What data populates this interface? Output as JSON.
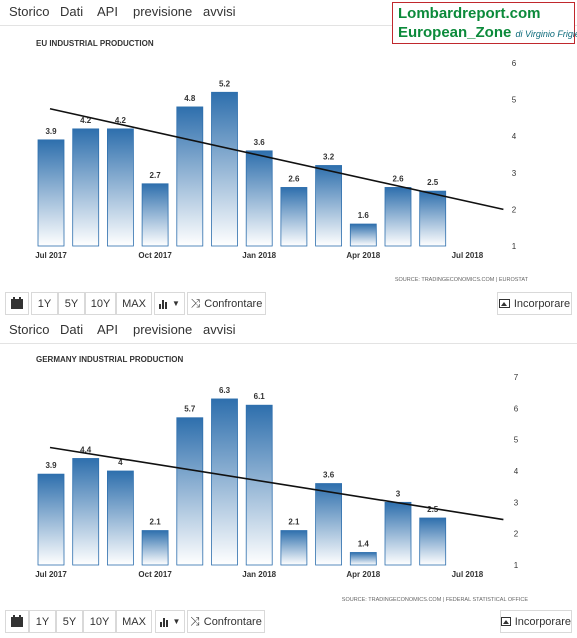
{
  "brand": {
    "line1": "Lombardreport.com",
    "line2": "European_Zone",
    "byline": "di Virginio Frigieri",
    "color": "#0b8a3a",
    "border_color": "#c0282d"
  },
  "panels": [
    {
      "tabs": [
        {
          "label": "Storico",
          "active": true
        },
        {
          "label": "Dati",
          "active": false
        },
        {
          "label": "API",
          "active": false
        },
        {
          "label": "previsione",
          "active": false
        },
        {
          "label": "avvisi",
          "active": false
        }
      ],
      "source": "SOURCE: TRADINGECONOMICS.COM | EUROSTAT",
      "controls": {
        "ranges": [
          "1Y",
          "5Y",
          "10Y",
          "MAX"
        ],
        "compare_label": "Confrontare",
        "embed_label": "Incorporare",
        "calendar_icon": "calendar-icon",
        "chart_type_icon": "bar-chart-icon",
        "compare_icon": "shuffle-icon",
        "embed_icon": "image-icon"
      }
    },
    {
      "tabs": [
        {
          "label": "Storico",
          "active": true
        },
        {
          "label": "Dati",
          "active": false
        },
        {
          "label": "API",
          "active": false
        },
        {
          "label": "previsione",
          "active": false
        },
        {
          "label": "avvisi",
          "active": false
        }
      ],
      "source": "SOURCE: TRADINGECONOMICS.COM | FEDERAL STATISTICAL OFFICE",
      "controls": {
        "ranges": [
          "1Y",
          "5Y",
          "10Y",
          "MAX"
        ],
        "compare_label": "Confrontare",
        "embed_label": "Incorporare",
        "calendar_icon": "calendar-icon",
        "chart_type_icon": "bar-chart-icon",
        "compare_icon": "shuffle-icon",
        "embed_icon": "image-icon"
      }
    }
  ],
  "chart_data": [
    {
      "type": "bar",
      "title": "EU INDUSTRIAL PRODUCTION",
      "categories": [
        "2017-07",
        "2017-08",
        "2017-09",
        "2017-10",
        "2017-11",
        "2017-12",
        "2018-01",
        "2018-02",
        "2018-03",
        "2018-04",
        "2018-05",
        "2018-06"
      ],
      "values": [
        3.9,
        4.2,
        4.2,
        2.7,
        4.8,
        5.2,
        3.6,
        2.6,
        3.2,
        1.6,
        2.6,
        2.5
      ],
      "data_labels": [
        "3.9",
        "4.2",
        "4.2",
        "2.7",
        "4.8",
        "5.2",
        "3.6",
        "2.6",
        "3.2",
        "1.6",
        "2.6",
        "2.5"
      ],
      "x_tick_labels": [
        "Jul 2017",
        "Oct 2017",
        "Jan 2018",
        "Apr 2018",
        "Jul 2018"
      ],
      "x_tick_positions": [
        "2017-07",
        "2017-10",
        "2018-01",
        "2018-04",
        "2018-07"
      ],
      "y_ticks": [
        "1",
        "2",
        "3",
        "4",
        "5",
        "6"
      ],
      "ylim": [
        1,
        6
      ],
      "y_axis_side": "right",
      "trend_line": {
        "x": [
          "2017-07",
          "2018-07"
        ],
        "y": [
          4.75,
          2.0
        ]
      },
      "bar_color_top": "#2e6fad",
      "bar_color_bottom": "#ffffff",
      "grid": false
    },
    {
      "type": "bar",
      "title": "GERMANY INDUSTRIAL PRODUCTION",
      "categories": [
        "2017-07",
        "2017-08",
        "2017-09",
        "2017-10",
        "2017-11",
        "2017-12",
        "2018-01",
        "2018-02",
        "2018-03",
        "2018-04",
        "2018-05",
        "2018-06"
      ],
      "values": [
        3.9,
        4.4,
        4.0,
        2.1,
        5.7,
        6.3,
        6.1,
        2.1,
        3.6,
        1.4,
        3.0,
        2.5
      ],
      "data_labels": [
        "3.9",
        "4.4",
        "4",
        "2.1",
        "5.7",
        "6.3",
        "6.1",
        "2.1",
        "3.6",
        "1.4",
        "3",
        "2.5"
      ],
      "x_tick_labels": [
        "Jul 2017",
        "Oct 2017",
        "Jan 2018",
        "Apr 2018",
        "Jul 2018"
      ],
      "x_tick_positions": [
        "2017-07",
        "2017-10",
        "2018-01",
        "2018-04",
        "2018-07"
      ],
      "y_ticks": [
        "1",
        "2",
        "3",
        "4",
        "5",
        "6",
        "7"
      ],
      "ylim": [
        1,
        7
      ],
      "y_axis_side": "right",
      "trend_line": {
        "x": [
          "2017-07",
          "2018-07"
        ],
        "y": [
          4.75,
          2.45
        ]
      },
      "bar_color_top": "#2e6fad",
      "bar_color_bottom": "#ffffff",
      "grid": false
    }
  ]
}
